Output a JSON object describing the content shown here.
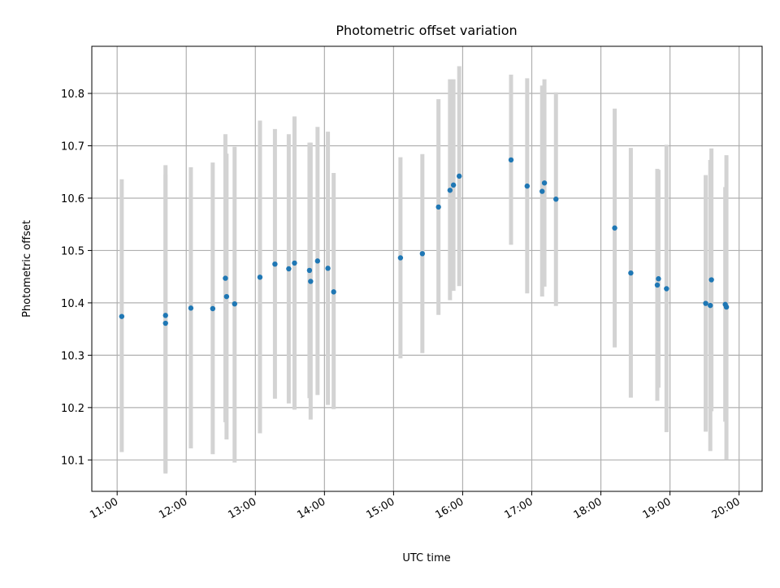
{
  "chart_data": {
    "type": "scatter",
    "title": "Photometric offset variation",
    "xlabel": "UTC time",
    "ylabel": "Photometric offset",
    "xlim": [
      "10:38",
      "20:20"
    ],
    "ylim": [
      10.04,
      10.89
    ],
    "x_ticks": [
      "11:00",
      "12:00",
      "13:00",
      "14:00",
      "15:00",
      "16:00",
      "17:00",
      "18:00",
      "19:00",
      "20:00"
    ],
    "y_ticks": [
      "10.1",
      "10.2",
      "10.3",
      "10.4",
      "10.5",
      "10.6",
      "10.7",
      "10.8"
    ],
    "grid": true,
    "legend": false,
    "point_color": "#1f77b4",
    "errorbar_color": "#d3d3d3",
    "points": [
      {
        "x": "11:04",
        "y": 10.374,
        "ymin": 10.115,
        "ymax": 10.636
      },
      {
        "x": "11:42",
        "y": 10.376,
        "ymin": 10.077,
        "ymax": 10.663
      },
      {
        "x": "11:42",
        "y": 10.361,
        "ymin": 10.074,
        "ymax": 10.645
      },
      {
        "x": "12:04",
        "y": 10.39,
        "ymin": 10.122,
        "ymax": 10.659
      },
      {
        "x": "12:23",
        "y": 10.389,
        "ymin": 10.111,
        "ymax": 10.668
      },
      {
        "x": "12:34",
        "y": 10.447,
        "ymin": 10.172,
        "ymax": 10.722
      },
      {
        "x": "12:35",
        "y": 10.412,
        "ymin": 10.139,
        "ymax": 10.685
      },
      {
        "x": "12:42",
        "y": 10.398,
        "ymin": 10.095,
        "ymax": 10.698
      },
      {
        "x": "13:04",
        "y": 10.449,
        "ymin": 10.151,
        "ymax": 10.748
      },
      {
        "x": "13:17",
        "y": 10.474,
        "ymin": 10.217,
        "ymax": 10.732
      },
      {
        "x": "13:29",
        "y": 10.465,
        "ymin": 10.208,
        "ymax": 10.722
      },
      {
        "x": "13:34",
        "y": 10.476,
        "ymin": 10.196,
        "ymax": 10.756
      },
      {
        "x": "13:47",
        "y": 10.462,
        "ymin": 10.218,
        "ymax": 10.706
      },
      {
        "x": "13:48",
        "y": 10.441,
        "ymin": 10.177,
        "ymax": 10.706
      },
      {
        "x": "13:54",
        "y": 10.48,
        "ymin": 10.224,
        "ymax": 10.736
      },
      {
        "x": "14:03",
        "y": 10.466,
        "ymin": 10.205,
        "ymax": 10.727
      },
      {
        "x": "14:08",
        "y": 10.421,
        "ymin": 10.197,
        "ymax": 10.648
      },
      {
        "x": "15:06",
        "y": 10.486,
        "ymin": 10.294,
        "ymax": 10.678
      },
      {
        "x": "15:25",
        "y": 10.494,
        "ymin": 10.304,
        "ymax": 10.684
      },
      {
        "x": "15:39",
        "y": 10.583,
        "ymin": 10.377,
        "ymax": 10.789
      },
      {
        "x": "15:49",
        "y": 10.615,
        "ymin": 10.405,
        "ymax": 10.827
      },
      {
        "x": "15:52",
        "y": 10.625,
        "ymin": 10.423,
        "ymax": 10.827
      },
      {
        "x": "15:57",
        "y": 10.642,
        "ymin": 10.432,
        "ymax": 10.852
      },
      {
        "x": "16:42",
        "y": 10.673,
        "ymin": 10.511,
        "ymax": 10.836
      },
      {
        "x": "16:56",
        "y": 10.623,
        "ymin": 10.418,
        "ymax": 10.829
      },
      {
        "x": "17:09",
        "y": 10.613,
        "ymin": 10.412,
        "ymax": 10.815
      },
      {
        "x": "17:11",
        "y": 10.629,
        "ymin": 10.431,
        "ymax": 10.827
      },
      {
        "x": "17:21",
        "y": 10.598,
        "ymin": 10.394,
        "ymax": 10.802
      },
      {
        "x": "18:12",
        "y": 10.543,
        "ymin": 10.315,
        "ymax": 10.771
      },
      {
        "x": "18:26",
        "y": 10.457,
        "ymin": 10.219,
        "ymax": 10.696
      },
      {
        "x": "18:49",
        "y": 10.434,
        "ymin": 10.213,
        "ymax": 10.656
      },
      {
        "x": "18:50",
        "y": 10.446,
        "ymin": 10.238,
        "ymax": 10.654
      },
      {
        "x": "18:57",
        "y": 10.427,
        "ymin": 10.153,
        "ymax": 10.702
      },
      {
        "x": "19:31",
        "y": 10.399,
        "ymin": 10.154,
        "ymax": 10.644
      },
      {
        "x": "19:35",
        "y": 10.395,
        "ymin": 10.117,
        "ymax": 10.673
      },
      {
        "x": "19:36",
        "y": 10.444,
        "ymin": 10.193,
        "ymax": 10.695
      },
      {
        "x": "19:48",
        "y": 10.397,
        "ymin": 10.173,
        "ymax": 10.621
      },
      {
        "x": "19:49",
        "y": 10.392,
        "ymin": 10.101,
        "ymax": 10.682
      }
    ]
  }
}
